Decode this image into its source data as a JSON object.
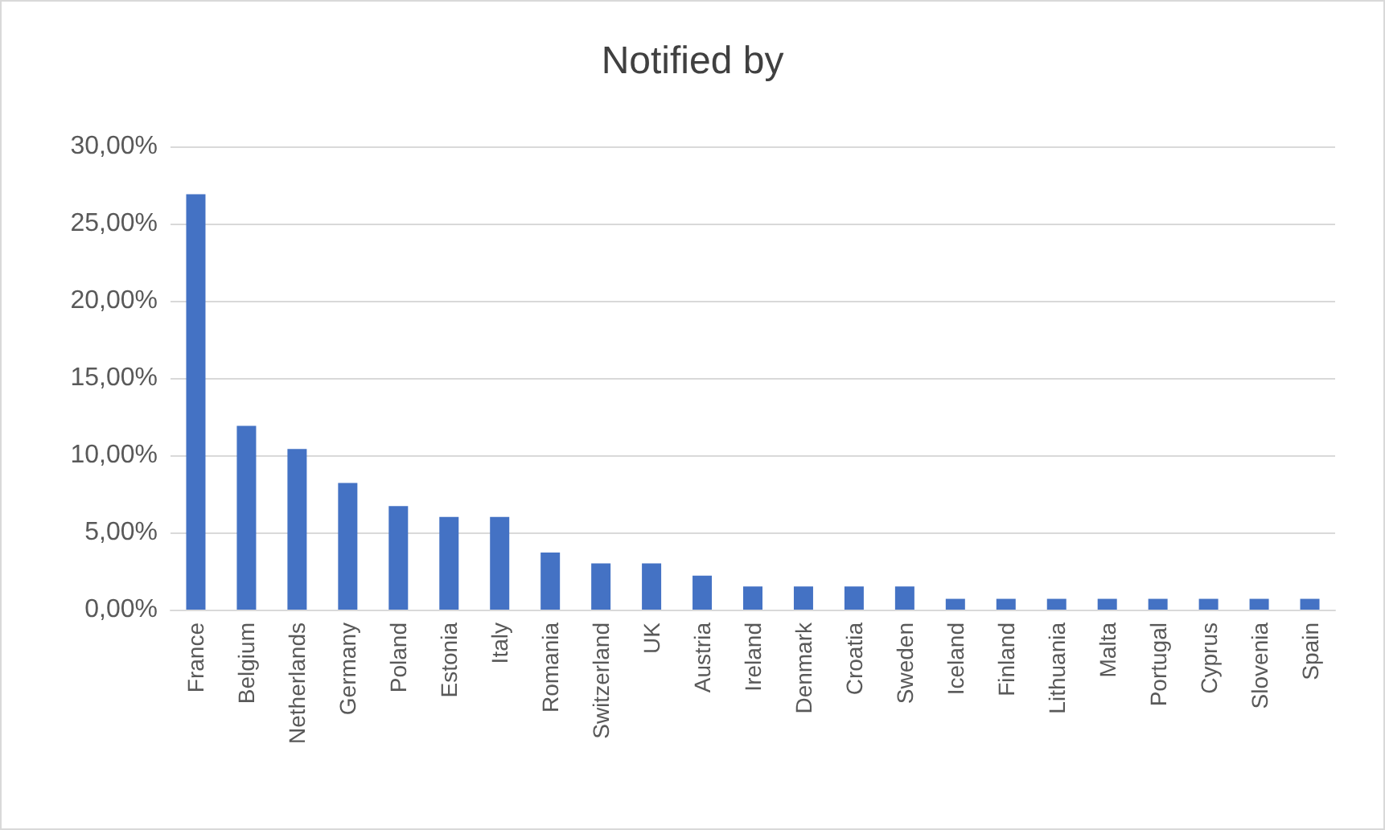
{
  "chart_data": {
    "type": "bar",
    "title": "Notified by",
    "categories": [
      "France",
      "Belgium",
      "Netherlands",
      "Germany",
      "Poland",
      "Estonia",
      "Italy",
      "Romania",
      "Switzerland",
      "UK",
      "Austria",
      "Ireland",
      "Denmark",
      "Croatia",
      "Sweden",
      "Iceland",
      "Finland",
      "Lithuania",
      "Malta",
      "Portugal",
      "Cyprus",
      "Slovenia",
      "Spain"
    ],
    "values": [
      26.9,
      11.9,
      10.4,
      8.2,
      6.7,
      6.0,
      6.0,
      3.7,
      3.0,
      3.0,
      2.2,
      1.5,
      1.5,
      1.5,
      1.5,
      0.7,
      0.7,
      0.7,
      0.7,
      0.7,
      0.7,
      0.7,
      0.7
    ],
    "color": "#4472c4",
    "ylim": [
      0,
      30
    ],
    "yticks": [
      {
        "value": 0,
        "label": "0,00%"
      },
      {
        "value": 5,
        "label": "5,00%"
      },
      {
        "value": 10,
        "label": "10,00%"
      },
      {
        "value": 15,
        "label": "15,00%"
      },
      {
        "value": 20,
        "label": "20,00%"
      },
      {
        "value": 25,
        "label": "25,00%"
      },
      {
        "value": 30,
        "label": "30,00%"
      }
    ],
    "grid": "y"
  }
}
